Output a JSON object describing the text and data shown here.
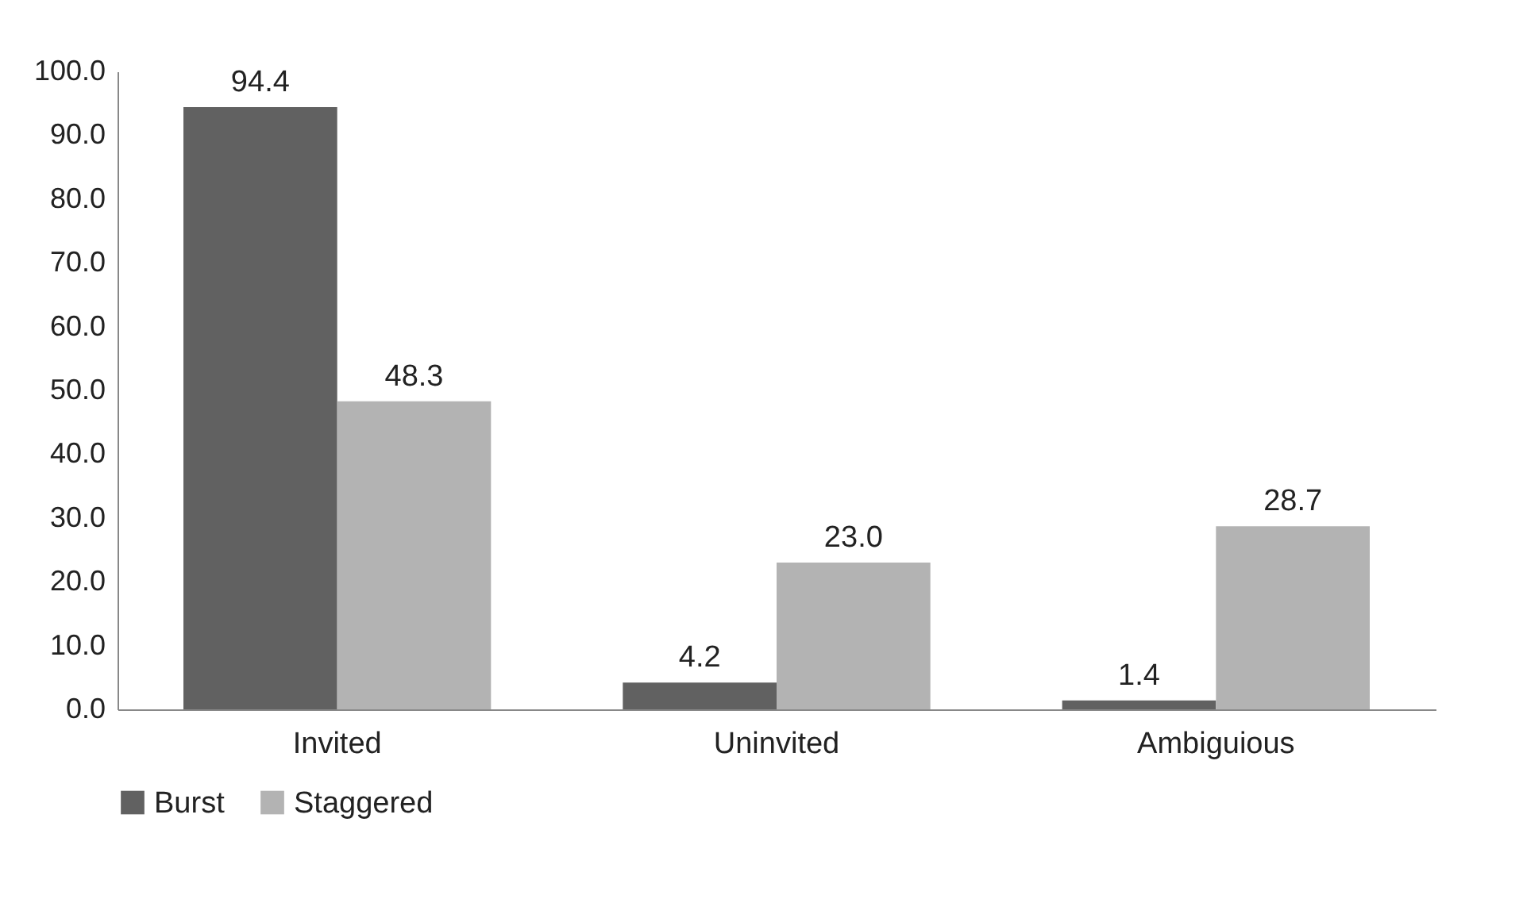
{
  "chart_data": {
    "type": "bar",
    "categories": [
      "Invited",
      "Uninvited",
      "Ambiguious"
    ],
    "series": [
      {
        "name": "Burst",
        "color": "#616161",
        "values": [
          94.4,
          4.2,
          1.4
        ]
      },
      {
        "name": "Staggered",
        "color": "#b3b3b3",
        "values": [
          48.3,
          23.0,
          28.7
        ]
      }
    ],
    "ylim": [
      0,
      100
    ],
    "yticks": [
      {
        "value": 0,
        "label": "0.0"
      },
      {
        "value": 10,
        "label": "10.0"
      },
      {
        "value": 20,
        "label": "20.0"
      },
      {
        "value": 30,
        "label": "30.0"
      },
      {
        "value": 40,
        "label": "40.0"
      },
      {
        "value": 50,
        "label": "50.0"
      },
      {
        "value": 60,
        "label": "60.0"
      },
      {
        "value": 70,
        "label": "70.0"
      },
      {
        "value": 80,
        "label": "80.0"
      },
      {
        "value": 90,
        "label": "90.0"
      },
      {
        "value": 100,
        "label": "100.0"
      }
    ],
    "value_labels": [
      [
        "94.4",
        "4.2",
        "1.4"
      ],
      [
        "48.3",
        "23.0",
        "28.7"
      ]
    ],
    "grid": false,
    "legend": "bottom"
  }
}
